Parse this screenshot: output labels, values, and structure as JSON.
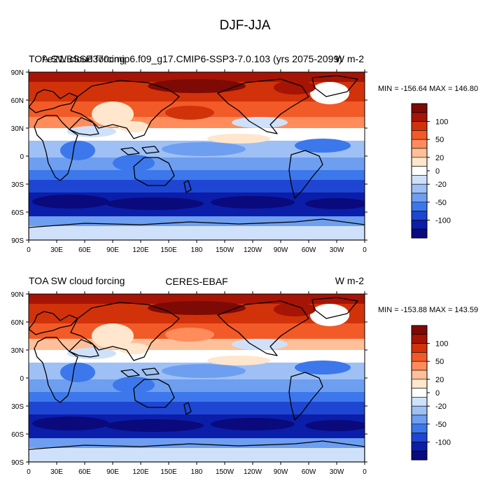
{
  "page": {
    "title": "DJF-JJA"
  },
  "colors": {
    "levels": [
      "#0a0a7d",
      "#0a1eaa",
      "#1e46d2",
      "#3c78eb",
      "#6e9ef0",
      "#9ec0f5",
      "#cfe1fa",
      "#ffffff",
      "#ffe6cc",
      "#ffbf99",
      "#ff8c5a",
      "#f25a28",
      "#d2320a",
      "#a51405",
      "#7d0a05"
    ]
  },
  "colorbar_ticks": [
    "100",
    "50",
    "20",
    "0",
    "-20",
    "-50",
    "-100"
  ],
  "axes": {
    "y_ticks": [
      "90N",
      "60N",
      "30N",
      "0",
      "30S",
      "60S",
      "90S"
    ],
    "x_ticks": [
      "0",
      "30E",
      "60E",
      "90E",
      "120E",
      "150E",
      "180",
      "150W",
      "120W",
      "90W",
      "60W",
      "30W",
      "0"
    ]
  },
  "panels": [
    {
      "id": "top",
      "left_title": "TOA SW cloud forcing",
      "center_title": "f.e21.BSSP370cmip6.f09_g17.CMIP6-SSP3-7.0.103 (yrs 2075-2099)",
      "right_title": "W m-2",
      "min_max": "MIN = -156.64 MAX = 146.80"
    },
    {
      "id": "bottom",
      "left_title": "TOA SW cloud forcing",
      "center_title": "CERES-EBAF",
      "right_title": "W m-2",
      "min_max": "MIN = -153.88 MAX = 143.59"
    }
  ]
}
